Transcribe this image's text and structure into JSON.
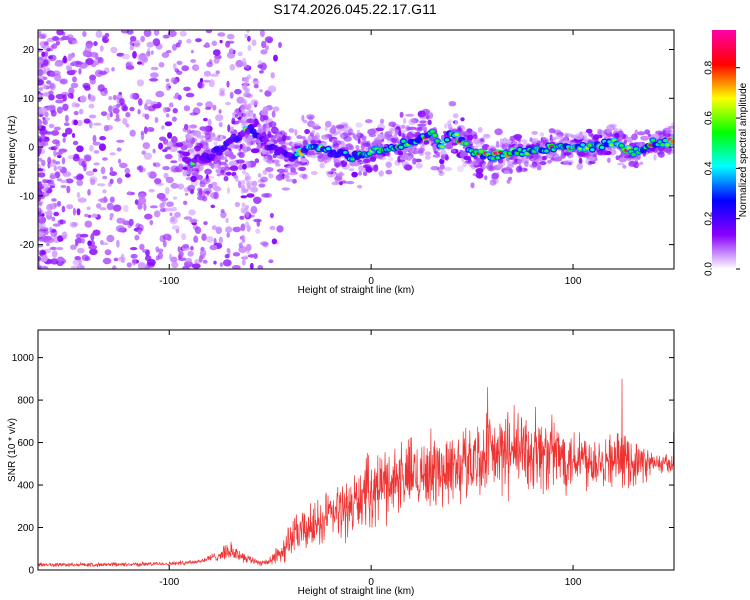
{
  "title": "S174.2026.045.22.17.G11",
  "colors": {
    "snr_line": "#ee3333",
    "axis": "#000000",
    "colorbar_stops": [
      "#ffffff",
      "#8800ff",
      "#0000ff",
      "#00ffff",
      "#00ff00",
      "#ffff00",
      "#ff0000",
      "#ff00aa"
    ]
  },
  "chart_data": [
    {
      "type": "heatmap",
      "name": "spectrogram",
      "xlabel": "Height of straight line (km)",
      "ylabel": "Frequency (Hz)",
      "xlim": [
        -165,
        150
      ],
      "ylim": [
        -25,
        24
      ],
      "x_ticks": [
        -100,
        0,
        100
      ],
      "y_ticks": [
        -20,
        -10,
        0,
        10,
        20
      ],
      "colorbar_label": "Normalized spectral amplitude",
      "colorbar_range": [
        0.0,
        0.95
      ],
      "colorbar_ticks": [
        0.0,
        0.2,
        0.4,
        0.6,
        0.8
      ],
      "ridge": {
        "description": "dominant frequency track",
        "x": [
          -90,
          -80,
          -70,
          -60,
          -50,
          -40,
          -30,
          -20,
          -10,
          0,
          10,
          20,
          30,
          35,
          40,
          45,
          50,
          60,
          70,
          80,
          90,
          100,
          110,
          120,
          130,
          140,
          150
        ],
        "y": [
          -3,
          -2,
          1,
          4,
          0,
          -2,
          0,
          -1,
          -2,
          -1,
          0,
          1,
          3,
          0,
          3,
          1,
          -1,
          -2,
          -1,
          -1,
          0,
          0,
          0,
          1,
          -1,
          1,
          1
        ]
      }
    },
    {
      "type": "line",
      "name": "snr",
      "xlabel": "Height of straight line (km)",
      "ylabel": "SNR (10 * v/v)",
      "xlim": [
        -165,
        150
      ],
      "ylim": [
        0,
        1130
      ],
      "x_ticks": [
        -100,
        0,
        100
      ],
      "y_ticks": [
        0,
        200,
        400,
        600,
        800,
        1000
      ],
      "envelope": {
        "x": [
          -165,
          -130,
          -100,
          -85,
          -75,
          -70,
          -65,
          -60,
          -55,
          -50,
          -45,
          -40,
          -30,
          -20,
          -10,
          0,
          10,
          20,
          30,
          40,
          50,
          60,
          70,
          80,
          90,
          100,
          110,
          120,
          130,
          140,
          150
        ],
        "y": [
          25,
          25,
          30,
          40,
          70,
          90,
          70,
          50,
          35,
          40,
          80,
          150,
          200,
          260,
          300,
          380,
          420,
          450,
          470,
          480,
          520,
          540,
          550,
          560,
          540,
          530,
          520,
          520,
          510,
          500,
          500
        ],
        "spread": [
          10,
          10,
          10,
          12,
          25,
          45,
          30,
          20,
          15,
          20,
          60,
          90,
          110,
          130,
          150,
          170,
          180,
          180,
          180,
          180,
          190,
          200,
          210,
          200,
          180,
          160,
          140,
          130,
          120,
          60,
          40
        ]
      }
    }
  ]
}
